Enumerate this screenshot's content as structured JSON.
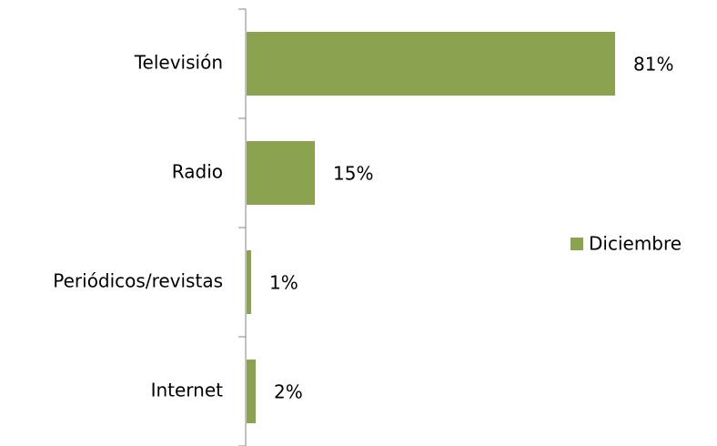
{
  "chart_data": {
    "type": "barh",
    "categories": [
      "Televisión",
      "Radio",
      "Periódicos/revistas",
      "Internet"
    ],
    "series": [
      {
        "name": "Diciembre",
        "color": "#8ba34e",
        "values": [
          81,
          15,
          1,
          2
        ],
        "value_labels": [
          "81%",
          "15%",
          "1%",
          "2%"
        ]
      }
    ],
    "legend": "right"
  }
}
